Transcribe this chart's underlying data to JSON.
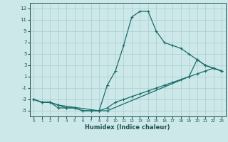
{
  "xlabel": "Humidex (Indice chaleur)",
  "background_color": "#cde8e8",
  "grid_color": "#aacccc",
  "line_color": "#1a6b6b",
  "tick_color": "#1a5050",
  "xlim": [
    -0.5,
    23.5
  ],
  "ylim": [
    -6,
    14
  ],
  "yticks": [
    -5,
    -3,
    -1,
    1,
    3,
    5,
    7,
    9,
    11,
    13
  ],
  "xticks": [
    0,
    1,
    2,
    3,
    4,
    5,
    6,
    7,
    8,
    9,
    10,
    11,
    12,
    13,
    14,
    15,
    16,
    17,
    18,
    19,
    20,
    21,
    22,
    23
  ],
  "line1_x": [
    0,
    1,
    2,
    3,
    4,
    5,
    6,
    7,
    8,
    9,
    10,
    11,
    12,
    13,
    14,
    15,
    16,
    17,
    18,
    19,
    20,
    21,
    22,
    23
  ],
  "line1_y": [
    -3,
    -3.5,
    -3.5,
    -4.5,
    -4.5,
    -4.5,
    -5,
    -5,
    -5,
    -0.5,
    2,
    6.5,
    11.5,
    12.5,
    12.5,
    9,
    7,
    6.5,
    6,
    5,
    4,
    3,
    2.5,
    2
  ],
  "line2_x": [
    0,
    1,
    2,
    3,
    4,
    5,
    6,
    7,
    8,
    9,
    10,
    11,
    12,
    13,
    14,
    15,
    16,
    17,
    18,
    19,
    20,
    21,
    22,
    23
  ],
  "line2_y": [
    -3,
    -3.5,
    -3.5,
    -4,
    -4.5,
    -4.5,
    -5,
    -5,
    -5,
    -4.5,
    -3.5,
    -3,
    -2.5,
    -2,
    -1.5,
    -1,
    -0.5,
    0,
    0.5,
    1,
    1.5,
    2,
    2.5,
    2
  ],
  "line3_x": [
    0,
    1,
    2,
    3,
    8,
    9,
    19,
    20,
    21,
    22,
    23
  ],
  "line3_y": [
    -3,
    -3.5,
    -3.5,
    -4,
    -5,
    -5,
    1,
    4,
    3,
    2.5,
    2
  ]
}
